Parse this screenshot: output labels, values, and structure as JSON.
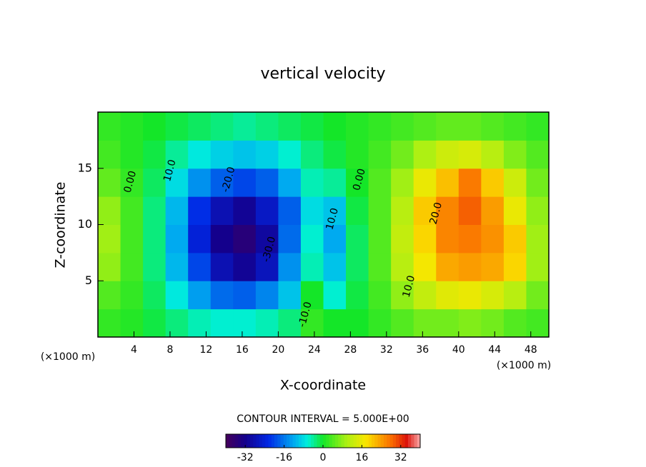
{
  "chart_data": {
    "type": "heatmap",
    "title": "vertical velocity",
    "xlabel": "X-coordinate",
    "ylabel": "Z-coordinate",
    "x_unit_label": "(×1000 m)",
    "x_unit_label_right": "(×1000 m)",
    "contour_interval": "CONTOUR INTERVAL = 5.000E+00",
    "xlim": [
      0,
      50
    ],
    "ylim": [
      0,
      20
    ],
    "xticks": [
      4,
      8,
      12,
      16,
      20,
      24,
      28,
      32,
      36,
      40,
      44,
      48
    ],
    "yticks": [
      5,
      10,
      15
    ],
    "clim": [
      -40,
      40
    ],
    "cticks": [
      -32,
      -16,
      0,
      16,
      32
    ],
    "x": [
      1.25,
      3.75,
      6.25,
      8.75,
      11.25,
      13.75,
      16.25,
      18.75,
      21.25,
      23.75,
      26.25,
      28.75,
      31.25,
      33.75,
      36.25,
      38.75,
      41.25,
      43.75,
      46.25,
      48.75
    ],
    "y": [
      1.25,
      3.75,
      6.25,
      8.75,
      11.25,
      13.75,
      16.25,
      18.75
    ],
    "values": [
      [
        2,
        1,
        -1,
        -3,
        -5,
        -6,
        -6,
        -5,
        -3,
        2,
        0,
        0,
        2,
        4,
        6,
        6,
        7,
        6,
        4,
        3
      ],
      [
        4,
        2,
        -2,
        -7,
        -13,
        -17,
        -18,
        -15,
        -10,
        0,
        -6,
        -1,
        3,
        8,
        12,
        15,
        16,
        14,
        11,
        6
      ],
      [
        8,
        3,
        -3,
        -11,
        -20,
        -28,
        -31,
        -27,
        -14,
        -5,
        -10,
        -2,
        4,
        11,
        17,
        23,
        24,
        23,
        19,
        9
      ],
      [
        9,
        3,
        -3,
        -12,
        -24,
        -32,
        -35,
        -30,
        -17,
        -6,
        -12,
        -2,
        4,
        12,
        19,
        26,
        27,
        25,
        20,
        9
      ],
      [
        8,
        3,
        -3,
        -11,
        -22,
        -28,
        -31,
        -26,
        -18,
        -8,
        -10,
        -1,
        4,
        11,
        20,
        26,
        29,
        24,
        16,
        8
      ],
      [
        5,
        2,
        -2,
        -8,
        -14,
        -18,
        -20,
        -18,
        -12,
        -5,
        -4,
        0,
        4,
        9,
        16,
        21,
        27,
        20,
        13,
        6
      ],
      [
        3,
        1,
        -1,
        -4,
        -7,
        -9,
        -10,
        -9,
        -6,
        -3,
        -1,
        1,
        3,
        6,
        10,
        13,
        14,
        11,
        7,
        4
      ],
      [
        2,
        1,
        0,
        -1,
        -2,
        -3,
        -4,
        -3,
        -2,
        -1,
        0,
        1,
        2,
        3,
        4,
        5,
        5,
        4,
        3,
        2
      ]
    ],
    "annotations": [
      {
        "text": "0.00",
        "x": 3.6,
        "y": 13.8
      },
      {
        "text": "10.0",
        "x": 8,
        "y": 14.8
      },
      {
        "text": "-20.0",
        "x": 14.5,
        "y": 14
      },
      {
        "text": "-30.0",
        "x": 19,
        "y": 7.8
      },
      {
        "text": "-10.0",
        "x": 23,
        "y": 2
      },
      {
        "text": "10.0",
        "x": 26,
        "y": 10.5
      },
      {
        "text": "0.00",
        "x": 29,
        "y": 14
      },
      {
        "text": "20.0",
        "x": 37.5,
        "y": 11
      },
      {
        "text": "10.0",
        "x": 34.5,
        "y": 4.5
      }
    ]
  }
}
